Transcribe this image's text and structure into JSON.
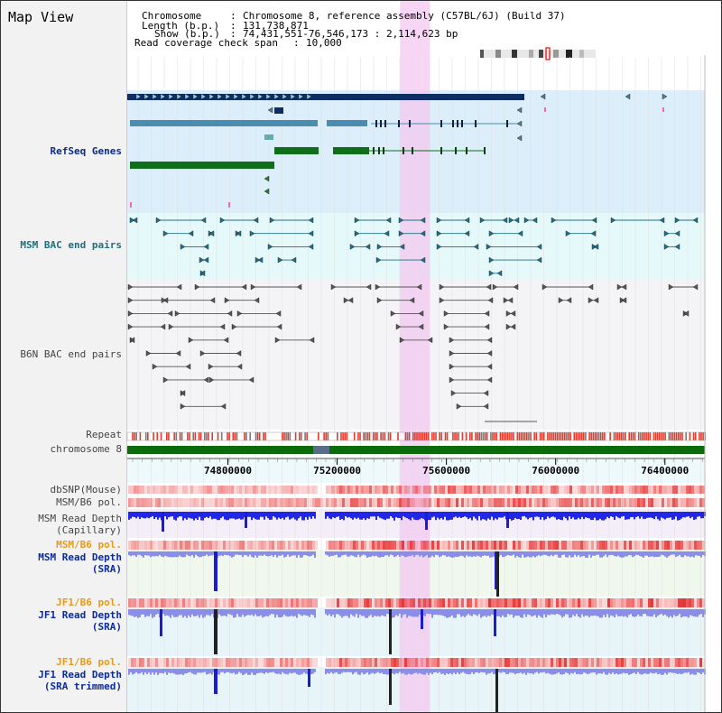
{
  "title": "Map View",
  "header": {
    "chromosome_key": "Chromosome",
    "chromosome_value": "Chromosome 8, reference assembly (C57BL/6J) (Build 37)",
    "length_key": "Length (b.p.)",
    "length_value": "131,738,871",
    "show_key": "Show (b.p.)",
    "show_value": "74,431,551-76,546,173 : 2,114,623 bp",
    "coverage_key": "Read coverage check span",
    "coverage_value": "10,000"
  },
  "tracks": {
    "refseq": "RefSeq Genes",
    "msm_bac": "MSM BAC end pairs",
    "b6n_bac": "B6N BAC end pairs",
    "repeat": "Repeat",
    "chromosome": "chromosome 8",
    "dbsnp": "dbSNP(Mouse)",
    "msm_b6_pol": "MSM/B6 pol.",
    "msm_depth_cap_1": "MSM Read Depth",
    "msm_depth_cap_2": "(Capillary)",
    "msm_b6_pol_sra": "MSM/B6 pol.",
    "msm_depth_sra_1": "MSM Read Depth",
    "msm_depth_sra_2": "(SRA)",
    "jf1_b6_pol": "JF1/B6 pol.",
    "jf1_depth_sra_1": "JF1 Read Depth",
    "jf1_depth_sra_2": "(SRA)",
    "jf1_b6_pol_trim": "JF1/B6 pol.",
    "jf1_depth_trim_1": "JF1 Read Depth",
    "jf1_depth_trim_2": "(SRA trimmed)"
  },
  "axis": {
    "range_bp": [
      74431551,
      76546173
    ],
    "ticks": [
      "74800000",
      "75200000",
      "75600000",
      "76000000",
      "76400000"
    ]
  },
  "highlight_region_bp": [
    75430000,
    75540000
  ],
  "colors": {
    "refseq_bg": "#dbeefa",
    "msm_bg": "#e5f9fb",
    "b6n_bg": "#f4f4f7",
    "gene_dark": "#0e2d62",
    "gene_mid": "#4a8db0",
    "gene_green": "#0e6e1a",
    "msm_pair": "#1e6f85",
    "b6n_pair": "#555555",
    "highlight": "#f3c8f0",
    "chromosome_band": "#0b6b0b",
    "depth_blue": "#2226e6",
    "depth_light": "#8a8ee8"
  }
}
